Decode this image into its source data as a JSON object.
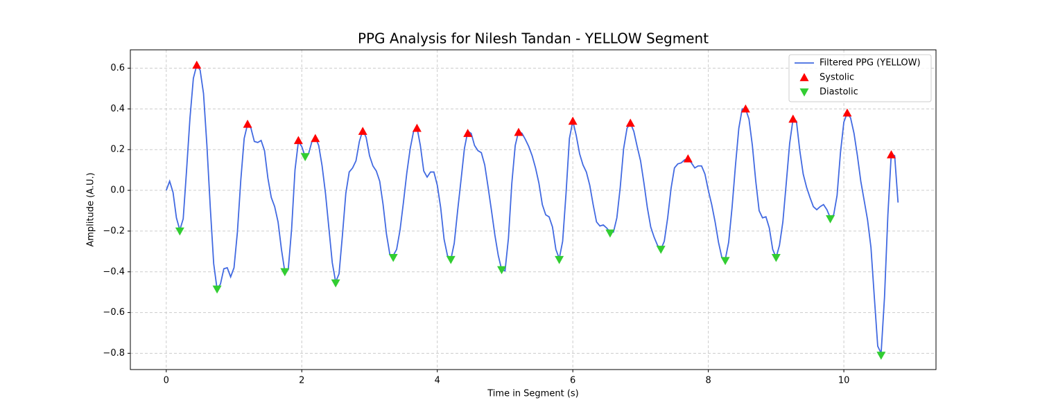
{
  "chart_data": {
    "type": "line",
    "title": "PPG Analysis for Nilesh Tandan - YELLOW Segment",
    "xlabel": "Time in Segment (s)",
    "ylabel": "Amplitude (A.U.)",
    "xlim": [
      -0.53,
      11.36
    ],
    "ylim": [
      -0.88,
      0.69
    ],
    "xticks": [
      0,
      2,
      4,
      6,
      8,
      10
    ],
    "yticks": [
      {
        "value": -0.8,
        "label": "−0.8"
      },
      {
        "value": -0.6,
        "label": "−0.6"
      },
      {
        "value": -0.4,
        "label": "−0.4"
      },
      {
        "value": -0.2,
        "label": "−0.2"
      },
      {
        "value": 0,
        "label": "0.0"
      },
      0.2,
      0.4,
      0.6
    ],
    "grid": true,
    "legend": "upper right",
    "series": [
      {
        "name": "Filtered PPG (YELLOW)",
        "color": "#4169e1",
        "marker": "line",
        "x": [
          0,
          0.05,
          0.1,
          0.15,
          0.2,
          0.25,
          0.3,
          0.35,
          0.4,
          0.45,
          0.5,
          0.55,
          0.6,
          0.65,
          0.7,
          0.75,
          0.8,
          0.85,
          0.9,
          0.95,
          1.0,
          1.05,
          1.1,
          1.15,
          1.2,
          1.25,
          1.3,
          1.35,
          1.4,
          1.45,
          1.5,
          1.55,
          1.6,
          1.65,
          1.7,
          1.75,
          1.8,
          1.85,
          1.9,
          1.95,
          2.0,
          2.05,
          2.1,
          2.15,
          2.2,
          2.25,
          2.3,
          2.35,
          2.4,
          2.45,
          2.5,
          2.55,
          2.6,
          2.65,
          2.7,
          2.75,
          2.8,
          2.85,
          2.9,
          2.95,
          3.0,
          3.05,
          3.1,
          3.15,
          3.2,
          3.25,
          3.3,
          3.35,
          3.4,
          3.45,
          3.5,
          3.55,
          3.6,
          3.65,
          3.7,
          3.75,
          3.8,
          3.85,
          3.9,
          3.95,
          4.0,
          4.05,
          4.1,
          4.15,
          4.2,
          4.25,
          4.3,
          4.35,
          4.4,
          4.45,
          4.5,
          4.55,
          4.6,
          4.65,
          4.7,
          4.75,
          4.8,
          4.85,
          4.9,
          4.95,
          5.0,
          5.05,
          5.1,
          5.15,
          5.2,
          5.25,
          5.3,
          5.35,
          5.4,
          5.45,
          5.5,
          5.55,
          5.6,
          5.65,
          5.7,
          5.75,
          5.8,
          5.85,
          5.9,
          5.95,
          6.0,
          6.05,
          6.1,
          6.15,
          6.2,
          6.25,
          6.3,
          6.35,
          6.4,
          6.45,
          6.5,
          6.55,
          6.6,
          6.65,
          6.7,
          6.75,
          6.8,
          6.85,
          6.9,
          6.95,
          7.0,
          7.05,
          7.1,
          7.15,
          7.2,
          7.25,
          7.3,
          7.35,
          7.4,
          7.45,
          7.5,
          7.55,
          7.6,
          7.65,
          7.7,
          7.75,
          7.8,
          7.85,
          7.9,
          7.95,
          8.0,
          8.05,
          8.1,
          8.15,
          8.2,
          8.25,
          8.3,
          8.35,
          8.4,
          8.45,
          8.5,
          8.55,
          8.6,
          8.65,
          8.7,
          8.75,
          8.8,
          8.85,
          8.9,
          8.95,
          9.0,
          9.05,
          9.1,
          9.15,
          9.2,
          9.25,
          9.3,
          9.35,
          9.4,
          9.45,
          9.5,
          9.55,
          9.6,
          9.65,
          9.7,
          9.75,
          9.8,
          9.85,
          9.9,
          9.95,
          10.0,
          10.05,
          10.1,
          10.15,
          10.2,
          10.25,
          10.3,
          10.35,
          10.4,
          10.45,
          10.5,
          10.55,
          10.6,
          10.65,
          10.7,
          10.75,
          10.8
        ],
        "values": [
          0,
          0.045,
          -0.01,
          -0.135,
          -0.195,
          -0.14,
          0.1,
          0.355,
          0.55,
          0.615,
          0.59,
          0.475,
          0.22,
          -0.085,
          -0.36,
          -0.485,
          -0.46,
          -0.385,
          -0.38,
          -0.425,
          -0.38,
          -0.205,
          0.05,
          0.255,
          0.325,
          0.305,
          0.24,
          0.235,
          0.245,
          0.195,
          0.06,
          -0.035,
          -0.08,
          -0.155,
          -0.29,
          -0.4,
          -0.39,
          -0.19,
          0.1,
          0.24,
          0.215,
          0.165,
          0.18,
          0.24,
          0.26,
          0.22,
          0.12,
          -0.015,
          -0.185,
          -0.355,
          -0.45,
          -0.41,
          -0.22,
          -0.015,
          0.09,
          0.11,
          0.145,
          0.24,
          0.295,
          0.26,
          0.17,
          0.12,
          0.095,
          0.045,
          -0.07,
          -0.215,
          -0.315,
          -0.32,
          -0.29,
          -0.195,
          -0.06,
          0.085,
          0.205,
          0.29,
          0.31,
          0.22,
          0.095,
          0.065,
          0.09,
          0.09,
          0.025,
          -0.085,
          -0.24,
          -0.32,
          -0.34,
          -0.26,
          -0.1,
          0.05,
          0.205,
          0.29,
          0.28,
          0.22,
          0.195,
          0.185,
          0.125,
          0.015,
          -0.1,
          -0.22,
          -0.32,
          -0.39,
          -0.395,
          -0.235,
          0.035,
          0.22,
          0.29,
          0.28,
          0.25,
          0.215,
          0.17,
          0.11,
          0.035,
          -0.07,
          -0.12,
          -0.13,
          -0.18,
          -0.29,
          -0.335,
          -0.25,
          -0.015,
          0.255,
          0.34,
          0.27,
          0.18,
          0.125,
          0.09,
          0.025,
          -0.07,
          -0.155,
          -0.175,
          -0.17,
          -0.185,
          -0.205,
          -0.205,
          -0.135,
          0.015,
          0.205,
          0.305,
          0.33,
          0.29,
          0.215,
          0.145,
          0.035,
          -0.085,
          -0.18,
          -0.23,
          -0.27,
          -0.29,
          -0.25,
          -0.135,
          0.01,
          0.11,
          0.13,
          0.135,
          0.15,
          0.155,
          0.135,
          0.11,
          0.12,
          0.12,
          0.08,
          0,
          -0.07,
          -0.155,
          -0.255,
          -0.33,
          -0.34,
          -0.255,
          -0.085,
          0.12,
          0.305,
          0.4,
          0.4,
          0.35,
          0.22,
          0.045,
          -0.1,
          -0.135,
          -0.13,
          -0.185,
          -0.29,
          -0.33,
          -0.27,
          -0.155,
          0.035,
          0.23,
          0.35,
          0.34,
          0.195,
          0.08,
          0.015,
          -0.035,
          -0.08,
          -0.095,
          -0.08,
          -0.07,
          -0.095,
          -0.135,
          -0.12,
          -0.025,
          0.185,
          0.335,
          0.38,
          0.355,
          0.28,
          0.17,
          0.045,
          -0.05,
          -0.145,
          -0.28,
          -0.525,
          -0.765,
          -0.8,
          -0.525,
          -0.12,
          0.18,
          0.17,
          -0.06
        ]
      },
      {
        "name": "Systolic",
        "color": "#ff0000",
        "marker": "triangle-up",
        "x": [
          0.45,
          1.2,
          1.95,
          2.2,
          2.9,
          3.7,
          4.45,
          5.2,
          6.0,
          6.85,
          7.7,
          8.55,
          9.25,
          10.05,
          10.7
        ],
        "values": [
          0.615,
          0.325,
          0.245,
          0.255,
          0.29,
          0.305,
          0.28,
          0.285,
          0.34,
          0.33,
          0.155,
          0.4,
          0.35,
          0.38,
          0.175
        ]
      },
      {
        "name": "Diastolic",
        "color": "#32cd32",
        "marker": "triangle-down",
        "x": [
          0.2,
          0.75,
          1.75,
          2.05,
          2.5,
          3.35,
          4.2,
          4.95,
          5.8,
          6.55,
          7.3,
          8.25,
          9.0,
          9.8,
          10.55
        ],
        "values": [
          -0.2,
          -0.485,
          -0.4,
          0.165,
          -0.455,
          -0.33,
          -0.34,
          -0.39,
          -0.34,
          -0.21,
          -0.29,
          -0.345,
          -0.33,
          -0.14,
          -0.81
        ]
      }
    ]
  }
}
